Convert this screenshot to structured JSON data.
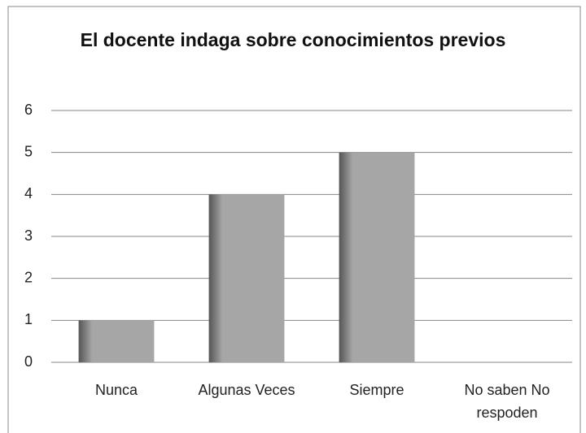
{
  "chart_data": {
    "type": "bar",
    "title": "El docente indaga sobre conocimientos previos",
    "categories": [
      "Nunca",
      "Algunas Veces",
      "Siempre",
      "No saben No respoden"
    ],
    "values": [
      1,
      4,
      5,
      0
    ],
    "color": "#a6a6a6",
    "ylim": [
      0,
      6
    ],
    "yticks": [
      0,
      1,
      2,
      3,
      4,
      5,
      6
    ],
    "grid": true
  }
}
